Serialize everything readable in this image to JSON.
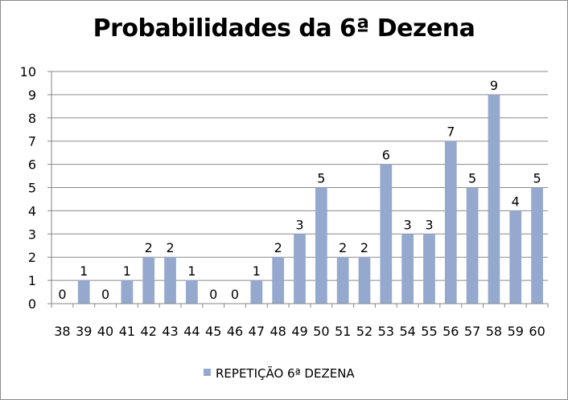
{
  "chart_data": {
    "type": "bar",
    "title": "Probabilidades da 6ª Dezena",
    "categories": [
      "38",
      "39",
      "40",
      "41",
      "42",
      "43",
      "44",
      "45",
      "46",
      "47",
      "48",
      "49",
      "50",
      "51",
      "52",
      "53",
      "54",
      "55",
      "56",
      "57",
      "58",
      "59",
      "60"
    ],
    "series": [
      {
        "name": "REPETIÇÃO 6ª DEZENA",
        "values": [
          0,
          1,
          0,
          1,
          2,
          2,
          1,
          0,
          0,
          1,
          2,
          3,
          5,
          2,
          2,
          6,
          3,
          3,
          7,
          5,
          9,
          4,
          5
        ]
      }
    ],
    "ylim": [
      0,
      10
    ],
    "yticks": [
      0,
      1,
      2,
      3,
      4,
      5,
      6,
      7,
      8,
      9,
      10
    ],
    "grid": true,
    "legend": "bottom",
    "colors": {
      "bar": "#95a9cf",
      "grid": "#8a8a8a",
      "axis": "#868686"
    }
  }
}
